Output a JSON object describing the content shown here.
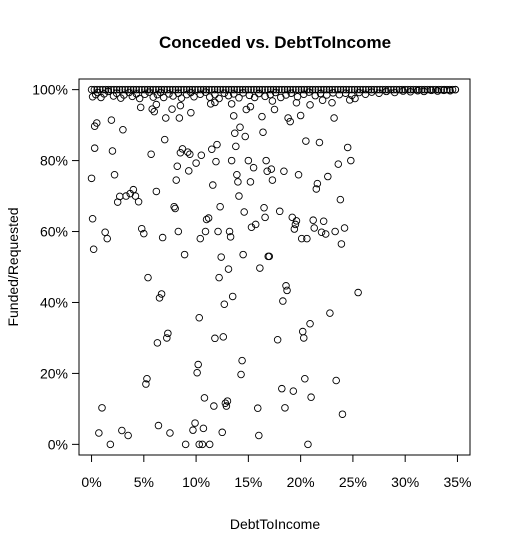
{
  "chart_data": {
    "type": "scatter",
    "title": "Conceded vs. DebtToIncome",
    "xlabel": "DebtToIncome",
    "ylabel": "Funded/Requested",
    "xlim": [
      -0.012,
      0.362
    ],
    "ylim": [
      -0.03,
      1.03
    ],
    "x_ticks": [
      0,
      0.05,
      0.1,
      0.15,
      0.2,
      0.25,
      0.3,
      0.35
    ],
    "x_tick_labels": [
      "0%",
      "5%",
      "10%",
      "15%",
      "20%",
      "25%",
      "30%",
      "35%"
    ],
    "y_ticks": [
      0,
      0.2,
      0.4,
      0.6,
      0.8,
      1.0
    ],
    "y_tick_labels": [
      "0%",
      "20%",
      "40%",
      "60%",
      "80%",
      "100%"
    ],
    "grid": false,
    "legend": "none",
    "marker": "open-circle",
    "points": [
      [
        0.0,
        0.75
      ],
      [
        0.001,
        0.636
      ],
      [
        0.002,
        0.55
      ],
      [
        0.003,
        0.897
      ],
      [
        0.003,
        0.835
      ],
      [
        0.005,
        0.906
      ],
      [
        0.007,
        0.032
      ],
      [
        0.01,
        0.103
      ],
      [
        0.013,
        0.598
      ],
      [
        0.015,
        0.58
      ],
      [
        0.018,
        0.0
      ],
      [
        0.019,
        0.914
      ],
      [
        0.02,
        0.827
      ],
      [
        0.022,
        0.76
      ],
      [
        0.025,
        0.683
      ],
      [
        0.027,
        0.699
      ],
      [
        0.029,
        0.039
      ],
      [
        0.03,
        0.887
      ],
      [
        0.033,
        0.7
      ],
      [
        0.035,
        0.025
      ],
      [
        0.037,
        0.707
      ],
      [
        0.04,
        0.718
      ],
      [
        0.042,
        0.7
      ],
      [
        0.045,
        0.684
      ],
      [
        0.047,
        0.95
      ],
      [
        0.048,
        0.608
      ],
      [
        0.05,
        0.594
      ],
      [
        0.052,
        0.17
      ],
      [
        0.053,
        0.185
      ],
      [
        0.054,
        0.47
      ],
      [
        0.057,
        0.818
      ],
      [
        0.058,
        0.945
      ],
      [
        0.06,
        0.938
      ],
      [
        0.062,
        0.713
      ],
      [
        0.063,
        0.286
      ],
      [
        0.064,
        0.053
      ],
      [
        0.065,
        0.413
      ],
      [
        0.067,
        0.424
      ],
      [
        0.068,
        0.583
      ],
      [
        0.07,
        0.859
      ],
      [
        0.071,
        0.92
      ],
      [
        0.072,
        0.3
      ],
      [
        0.073,
        0.313
      ],
      [
        0.075,
        0.032
      ],
      [
        0.077,
        0.945
      ],
      [
        0.079,
        0.67
      ],
      [
        0.08,
        0.665
      ],
      [
        0.081,
        0.745
      ],
      [
        0.082,
        0.784
      ],
      [
        0.083,
        0.6
      ],
      [
        0.084,
        0.92
      ],
      [
        0.085,
        0.822
      ],
      [
        0.087,
        0.833
      ],
      [
        0.089,
        0.535
      ],
      [
        0.09,
        0.0
      ],
      [
        0.092,
        0.824
      ],
      [
        0.093,
        0.771
      ],
      [
        0.094,
        0.818
      ],
      [
        0.095,
        0.935
      ],
      [
        0.097,
        0.04
      ],
      [
        0.099,
        0.06
      ],
      [
        0.1,
        0.793
      ],
      [
        0.101,
        0.202
      ],
      [
        0.102,
        0.225
      ],
      [
        0.103,
        0.0
      ],
      [
        0.103,
        0.357
      ],
      [
        0.104,
        0.58
      ],
      [
        0.105,
        0.815
      ],
      [
        0.106,
        0.0
      ],
      [
        0.107,
        0.045
      ],
      [
        0.108,
        0.131
      ],
      [
        0.109,
        0.6
      ],
      [
        0.11,
        0.634
      ],
      [
        0.112,
        0.638
      ],
      [
        0.113,
        0.0
      ],
      [
        0.114,
        0.96
      ],
      [
        0.115,
        0.832
      ],
      [
        0.116,
        0.731
      ],
      [
        0.117,
        0.108
      ],
      [
        0.118,
        0.299
      ],
      [
        0.119,
        0.797
      ],
      [
        0.12,
        0.845
      ],
      [
        0.121,
        0.6
      ],
      [
        0.122,
        0.47
      ],
      [
        0.123,
        0.67
      ],
      [
        0.124,
        0.528
      ],
      [
        0.125,
        0.034
      ],
      [
        0.126,
        0.303
      ],
      [
        0.127,
        0.395
      ],
      [
        0.128,
        0.116
      ],
      [
        0.129,
        0.108
      ],
      [
        0.13,
        0.122
      ],
      [
        0.131,
        0.494
      ],
      [
        0.132,
        0.6
      ],
      [
        0.133,
        0.585
      ],
      [
        0.134,
        0.8
      ],
      [
        0.135,
        0.417
      ],
      [
        0.136,
        0.926
      ],
      [
        0.137,
        0.877
      ],
      [
        0.138,
        0.84
      ],
      [
        0.139,
        0.76
      ],
      [
        0.14,
        0.74
      ],
      [
        0.141,
        0.7
      ],
      [
        0.142,
        0.894
      ],
      [
        0.143,
        0.197
      ],
      [
        0.144,
        0.236
      ],
      [
        0.145,
        0.535
      ],
      [
        0.146,
        0.655
      ],
      [
        0.147,
        0.868
      ],
      [
        0.148,
        0.944
      ],
      [
        0.15,
        0.8
      ],
      [
        0.152,
        0.74
      ],
      [
        0.153,
        0.612
      ],
      [
        0.155,
        0.78
      ],
      [
        0.157,
        0.62
      ],
      [
        0.159,
        0.102
      ],
      [
        0.16,
        0.025
      ],
      [
        0.161,
        0.497
      ],
      [
        0.163,
        0.924
      ],
      [
        0.164,
        0.88
      ],
      [
        0.165,
        0.667
      ],
      [
        0.166,
        0.64
      ],
      [
        0.167,
        0.8
      ],
      [
        0.168,
        0.77
      ],
      [
        0.169,
        0.53
      ],
      [
        0.17,
        0.53
      ],
      [
        0.172,
        0.776
      ],
      [
        0.173,
        0.745
      ],
      [
        0.175,
        0.944
      ],
      [
        0.178,
        0.295
      ],
      [
        0.18,
        0.657
      ],
      [
        0.182,
        0.157
      ],
      [
        0.183,
        0.404
      ],
      [
        0.184,
        0.77
      ],
      [
        0.185,
        0.103
      ],
      [
        0.186,
        0.447
      ],
      [
        0.187,
        0.434
      ],
      [
        0.188,
        0.92
      ],
      [
        0.19,
        0.91
      ],
      [
        0.192,
        0.64
      ],
      [
        0.193,
        0.15
      ],
      [
        0.194,
        0.607
      ],
      [
        0.195,
        0.62
      ],
      [
        0.196,
        0.63
      ],
      [
        0.198,
        0.76
      ],
      [
        0.2,
        0.927
      ],
      [
        0.201,
        0.58
      ],
      [
        0.202,
        0.318
      ],
      [
        0.203,
        0.3
      ],
      [
        0.204,
        0.185
      ],
      [
        0.205,
        0.855
      ],
      [
        0.206,
        0.58
      ],
      [
        0.207,
        0.0
      ],
      [
        0.209,
        0.34
      ],
      [
        0.21,
        0.133
      ],
      [
        0.212,
        0.632
      ],
      [
        0.213,
        0.61
      ],
      [
        0.215,
        0.72
      ],
      [
        0.216,
        0.735
      ],
      [
        0.218,
        0.851
      ],
      [
        0.22,
        0.598
      ],
      [
        0.222,
        0.629
      ],
      [
        0.224,
        0.593
      ],
      [
        0.226,
        0.755
      ],
      [
        0.228,
        0.37
      ],
      [
        0.23,
        0.963
      ],
      [
        0.232,
        0.92
      ],
      [
        0.233,
        0.6
      ],
      [
        0.234,
        0.18
      ],
      [
        0.236,
        0.79
      ],
      [
        0.238,
        0.69
      ],
      [
        0.239,
        0.565
      ],
      [
        0.24,
        0.085
      ],
      [
        0.242,
        0.61
      ],
      [
        0.245,
        0.837
      ],
      [
        0.247,
        0.971
      ],
      [
        0.248,
        0.8
      ],
      [
        0.255,
        0.428
      ],
      [
        0.001,
        0.98
      ],
      [
        0.004,
        0.986
      ],
      [
        0.006,
        0.992
      ],
      [
        0.009,
        0.978
      ],
      [
        0.012,
        0.988
      ],
      [
        0.016,
        0.995
      ],
      [
        0.021,
        0.982
      ],
      [
        0.024,
        0.99
      ],
      [
        0.028,
        0.976
      ],
      [
        0.031,
        0.985
      ],
      [
        0.036,
        0.992
      ],
      [
        0.039,
        0.981
      ],
      [
        0.043,
        0.988
      ],
      [
        0.046,
        0.975
      ],
      [
        0.051,
        0.987
      ],
      [
        0.055,
        0.993
      ],
      [
        0.059,
        0.979
      ],
      [
        0.063,
        0.986
      ],
      [
        0.066,
        0.992
      ],
      [
        0.069,
        0.978
      ],
      [
        0.074,
        0.988
      ],
      [
        0.078,
        0.982
      ],
      [
        0.083,
        0.99
      ],
      [
        0.086,
        0.976
      ],
      [
        0.091,
        0.986
      ],
      [
        0.095,
        0.992
      ],
      [
        0.098,
        0.98
      ],
      [
        0.104,
        0.987
      ],
      [
        0.109,
        0.993
      ],
      [
        0.113,
        0.979
      ],
      [
        0.118,
        0.986
      ],
      [
        0.122,
        0.975
      ],
      [
        0.127,
        0.99
      ],
      [
        0.131,
        0.983
      ],
      [
        0.136,
        0.988
      ],
      [
        0.141,
        0.977
      ],
      [
        0.145,
        0.991
      ],
      [
        0.151,
        0.984
      ],
      [
        0.156,
        0.978
      ],
      [
        0.16,
        0.989
      ],
      [
        0.166,
        0.981
      ],
      [
        0.171,
        0.986
      ],
      [
        0.176,
        0.992
      ],
      [
        0.181,
        0.978
      ],
      [
        0.186,
        0.985
      ],
      [
        0.191,
        0.99
      ],
      [
        0.197,
        0.98
      ],
      [
        0.203,
        0.987
      ],
      [
        0.208,
        0.993
      ],
      [
        0.214,
        0.983
      ],
      [
        0.219,
        0.989
      ],
      [
        0.225,
        0.985
      ],
      [
        0.231,
        0.991
      ],
      [
        0.237,
        0.986
      ],
      [
        0.243,
        0.99
      ],
      [
        0.249,
        0.984
      ],
      [
        0.256,
        0.992
      ],
      [
        0.262,
        0.987
      ],
      [
        0.268,
        0.993
      ],
      [
        0.275,
        0.99
      ],
      [
        0.282,
        0.995
      ],
      [
        0.29,
        0.992
      ],
      [
        0.298,
        0.996
      ],
      [
        0.305,
        0.994
      ],
      [
        0.312,
        0.997
      ],
      [
        0.318,
        0.995
      ],
      [
        0.325,
        0.998
      ],
      [
        0.331,
        0.996
      ],
      [
        0.337,
        0.998
      ],
      [
        0.343,
        0.997
      ],
      [
        0.348,
        1.0
      ],
      [
        0.062,
        0.958
      ],
      [
        0.118,
        0.964
      ],
      [
        0.152,
        0.952
      ],
      [
        0.173,
        0.968
      ],
      [
        0.196,
        0.963
      ],
      [
        0.221,
        0.97
      ],
      [
        0.252,
        0.975
      ],
      [
        0.085,
        0.955
      ],
      [
        0.134,
        0.96
      ],
      [
        0.209,
        0.957
      ]
    ]
  }
}
